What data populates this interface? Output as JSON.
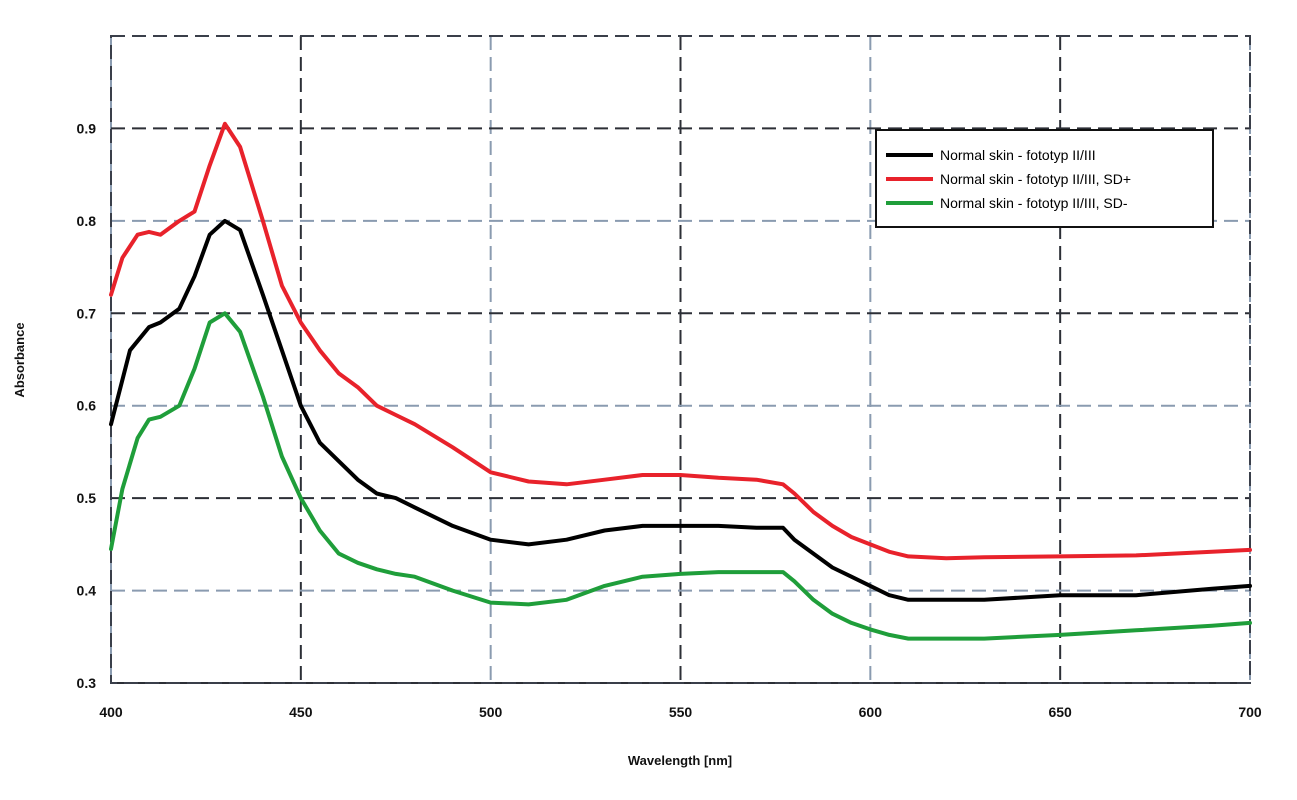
{
  "chart_data": {
    "type": "line",
    "title": "",
    "xlabel": "Wavelength [nm]",
    "ylabel": "Absorbance",
    "xlim": [
      400,
      700
    ],
    "ylim": [
      0.3,
      1.0
    ],
    "xticks": [
      400,
      450,
      500,
      550,
      600,
      650,
      700
    ],
    "xtick_labels": [
      "400",
      "450",
      "500",
      "550",
      "600",
      "650",
      "700"
    ],
    "yticks": [
      0.3,
      0.4,
      0.5,
      0.6,
      0.7,
      0.8,
      0.9
    ],
    "ytick_labels": [
      "0.3",
      "0.4",
      "0.5",
      "0.6",
      "0.7",
      "0.8",
      "0.9"
    ],
    "grid": true,
    "legend_position": "top-right",
    "series": [
      {
        "name": "Normal skin - fototyp II/III",
        "color": "#000000",
        "x": [
          400,
          405,
          410,
          413,
          418,
          422,
          426,
          430,
          434,
          440,
          445,
          450,
          455,
          460,
          465,
          470,
          475,
          480,
          490,
          500,
          510,
          520,
          530,
          540,
          550,
          560,
          570,
          577,
          580,
          585,
          590,
          595,
          600,
          605,
          610,
          620,
          630,
          650,
          670,
          690,
          700
        ],
        "y": [
          0.58,
          0.66,
          0.685,
          0.69,
          0.705,
          0.74,
          0.785,
          0.8,
          0.79,
          0.72,
          0.66,
          0.6,
          0.56,
          0.54,
          0.52,
          0.505,
          0.5,
          0.49,
          0.47,
          0.455,
          0.45,
          0.455,
          0.465,
          0.47,
          0.47,
          0.47,
          0.468,
          0.468,
          0.455,
          0.44,
          0.425,
          0.415,
          0.405,
          0.395,
          0.39,
          0.39,
          0.39,
          0.395,
          0.395,
          0.402,
          0.405
        ]
      },
      {
        "name": "Normal skin - fototyp II/III, SD+",
        "color": "#e8222b",
        "x": [
          400,
          403,
          407,
          410,
          413,
          418,
          422,
          426,
          430,
          434,
          440,
          445,
          450,
          455,
          460,
          465,
          470,
          475,
          480,
          490,
          500,
          510,
          520,
          530,
          540,
          550,
          560,
          570,
          577,
          580,
          585,
          590,
          595,
          600,
          605,
          610,
          620,
          630,
          650,
          670,
          690,
          700
        ],
        "y": [
          0.72,
          0.76,
          0.785,
          0.788,
          0.785,
          0.8,
          0.81,
          0.86,
          0.905,
          0.88,
          0.8,
          0.73,
          0.69,
          0.66,
          0.635,
          0.62,
          0.6,
          0.59,
          0.58,
          0.555,
          0.528,
          0.518,
          0.515,
          0.52,
          0.525,
          0.525,
          0.522,
          0.52,
          0.515,
          0.505,
          0.485,
          0.47,
          0.458,
          0.45,
          0.442,
          0.437,
          0.435,
          0.436,
          0.437,
          0.438,
          0.442,
          0.444
        ]
      },
      {
        "name": "Normal skin - fototyp II/III, SD-",
        "color": "#1f9e3a",
        "x": [
          400,
          403,
          407,
          410,
          413,
          418,
          422,
          426,
          430,
          434,
          440,
          445,
          450,
          455,
          460,
          465,
          470,
          475,
          480,
          490,
          500,
          510,
          520,
          530,
          540,
          550,
          560,
          570,
          577,
          580,
          585,
          590,
          595,
          600,
          605,
          610,
          620,
          630,
          650,
          670,
          690,
          700
        ],
        "y": [
          0.445,
          0.51,
          0.565,
          0.585,
          0.588,
          0.6,
          0.64,
          0.69,
          0.7,
          0.68,
          0.61,
          0.545,
          0.5,
          0.465,
          0.44,
          0.43,
          0.423,
          0.418,
          0.415,
          0.4,
          0.387,
          0.385,
          0.39,
          0.405,
          0.415,
          0.418,
          0.42,
          0.42,
          0.42,
          0.41,
          0.39,
          0.375,
          0.365,
          0.358,
          0.352,
          0.348,
          0.348,
          0.348,
          0.352,
          0.357,
          0.362,
          0.365
        ]
      }
    ]
  }
}
